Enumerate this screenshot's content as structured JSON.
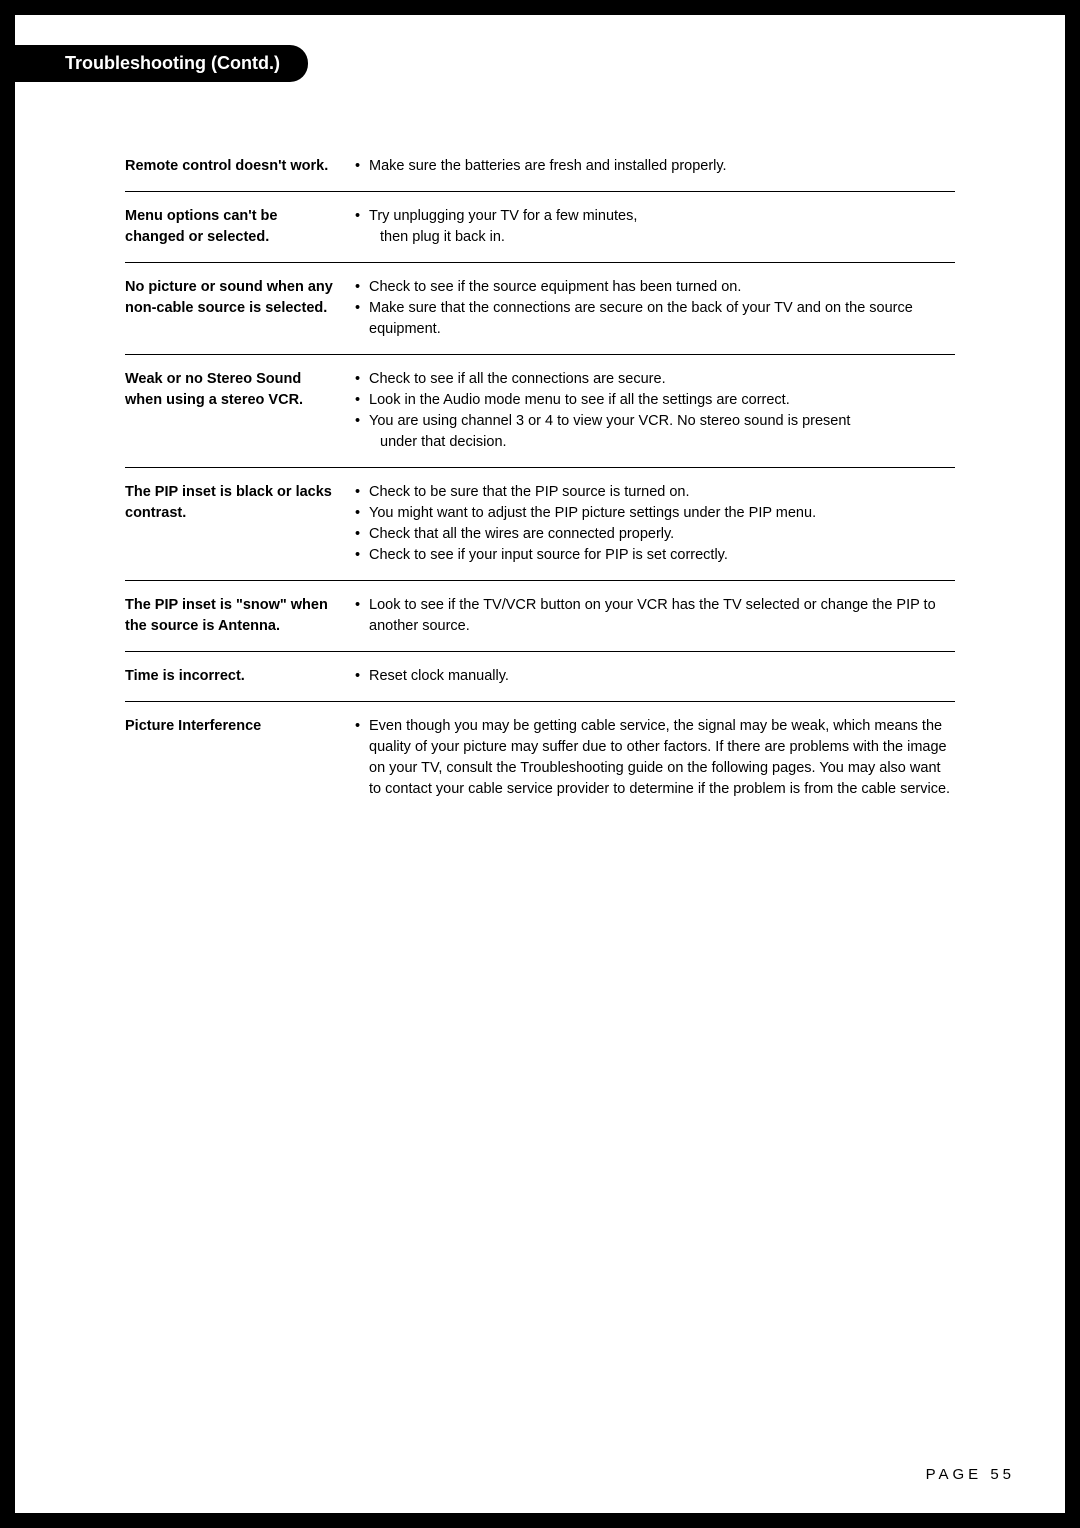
{
  "header": {
    "tab_title": "Troubleshooting (Contd.)"
  },
  "rows": [
    {
      "problem": "Remote control doesn't work.",
      "solutions": [
        {
          "text": "Make sure the batteries are fresh and installed properly."
        }
      ]
    },
    {
      "problem": "Menu options can't be changed or selected.",
      "solutions": [
        {
          "text": "Try unplugging your TV for a few minutes,",
          "cont": "then plug it back in."
        }
      ]
    },
    {
      "problem": "No picture or sound when any non-cable source is selected.",
      "solutions": [
        {
          "text": "Check to see if the source equipment has been turned on."
        },
        {
          "text": "Make sure that the connections are secure on the back of your TV and on the source equipment."
        }
      ]
    },
    {
      "problem": "Weak or no Stereo Sound when using a stereo VCR.",
      "solutions": [
        {
          "text": "Check to see if all the connections are secure."
        },
        {
          "text": "Look in the Audio mode menu to see if all the settings are correct."
        },
        {
          "text": "You are using channel 3 or 4 to view your VCR. No stereo sound is present",
          "cont": "under that decision."
        }
      ]
    },
    {
      "problem": "The PIP inset is black or lacks contrast.",
      "solutions": [
        {
          "text": "Check to be sure that the PIP source is turned on."
        },
        {
          "text": "You might want to adjust the PIP picture settings under the PIP menu."
        },
        {
          "text": "Check that all the wires are connected properly."
        },
        {
          "text": "Check to see if your input source for PIP is set correctly."
        }
      ]
    },
    {
      "problem": "The PIP inset is \"snow\" when the source is Antenna.",
      "solutions": [
        {
          "text": "Look to see if the TV/VCR button on your VCR has the TV selected or change the PIP to another source."
        }
      ]
    },
    {
      "problem": "Time is incorrect.",
      "solutions": [
        {
          "text": "Reset clock manually."
        }
      ]
    },
    {
      "problem": "Picture Interference",
      "solutions": [
        {
          "text": "Even though you may be getting cable service, the signal may be weak, which means the quality of your picture may suffer due to other factors. If there are problems with the image on your TV, consult the Troubleshooting guide on the following pages. You may also want to contact your cable service provider to determine if the problem is from the cable service."
        }
      ]
    }
  ],
  "footer": {
    "page_label": "PAGE 55"
  }
}
